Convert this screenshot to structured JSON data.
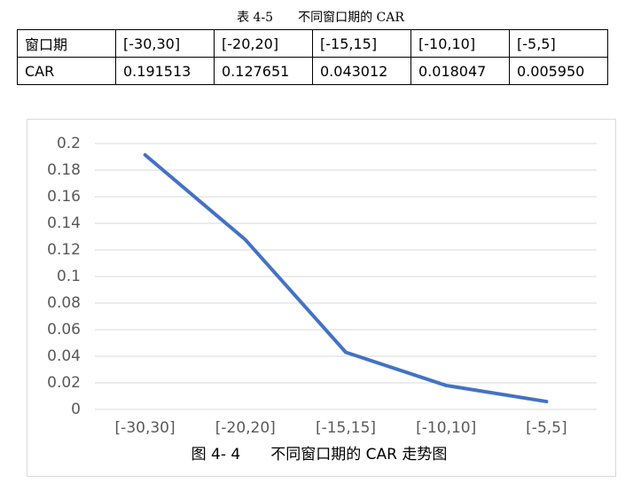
{
  "table": {
    "caption": "表 4-5　　不同窗口期的 CAR",
    "rows": [
      [
        "窗口期",
        "[-30,30]",
        "[-20,20]",
        "[-15,15]",
        "[-10,10]",
        "[-5,5]"
      ],
      [
        "CAR",
        "0.191513",
        "0.127651",
        "0.043012",
        "0.018047",
        "0.005950"
      ]
    ]
  },
  "chart_data": {
    "type": "line",
    "caption": "图 4- 4　　不同窗口期的 CAR 走势图",
    "categories": [
      "[-30,30]",
      "[-20,20]",
      "[-15,15]",
      "[-10,10]",
      "[-5,5]"
    ],
    "values": [
      0.191513,
      0.127651,
      0.043012,
      0.018047,
      0.00595
    ],
    "color": "#4472c4",
    "ylim": [
      0,
      0.2
    ],
    "yticks": [
      0,
      0.02,
      0.04,
      0.06,
      0.08,
      0.1,
      0.12,
      0.14,
      0.16,
      0.18,
      0.2
    ],
    "grid": true
  }
}
